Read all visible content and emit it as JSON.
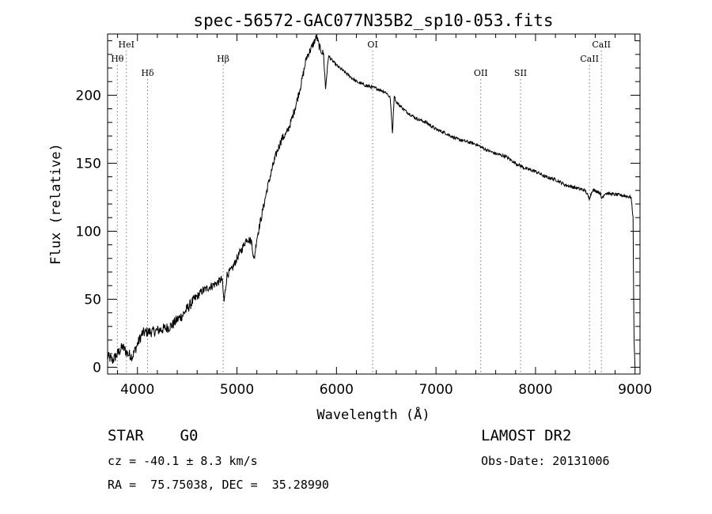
{
  "chart_data": {
    "type": "line",
    "title": "spec-56572-GAC077N35B2_sp10-053.fits",
    "xlabel": "Wavelength (Å)",
    "ylabel": "Flux (relative)",
    "xlim": [
      3700,
      9050
    ],
    "ylim": [
      -5,
      245
    ],
    "x_ticks": [
      4000,
      5000,
      6000,
      7000,
      8000,
      9000
    ],
    "y_ticks": [
      0,
      50,
      100,
      150,
      200
    ],
    "grid": false,
    "series": [
      {
        "x": [
          3700,
          3750,
          3800,
          3850,
          3900,
          3950,
          4000,
          4050,
          4100,
          4150,
          4200,
          4250,
          4300,
          4350,
          4400,
          4450,
          4500,
          4550,
          4600,
          4650,
          4700,
          4750,
          4800,
          4850,
          4870,
          4900,
          4950,
          5000,
          5050,
          5100,
          5150,
          5170,
          5200,
          5250,
          5300,
          5350,
          5400,
          5450,
          5500,
          5550,
          5600,
          5650,
          5700,
          5750,
          5800,
          5830,
          5870,
          5890,
          5920,
          5950,
          6000,
          6100,
          6200,
          6300,
          6400,
          6500,
          6540,
          6563,
          6580,
          6600,
          6700,
          6800,
          6900,
          7000,
          7100,
          7200,
          7300,
          7400,
          7500,
          7600,
          7700,
          7800,
          7900,
          8000,
          8100,
          8200,
          8300,
          8400,
          8500,
          8540,
          8570,
          8600,
          8650,
          8662,
          8700,
          8800,
          8900,
          8960,
          8980,
          8990,
          9000
        ],
        "y": [
          8,
          5,
          10,
          15,
          10,
          8,
          17,
          25,
          26,
          26,
          27,
          28,
          29,
          31,
          35,
          38,
          43,
          48,
          52,
          56,
          58,
          60,
          62,
          65,
          48,
          68,
          72,
          80,
          87,
          95,
          92,
          78,
          95,
          112,
          130,
          145,
          158,
          168,
          172,
          182,
          195,
          210,
          228,
          235,
          243,
          235,
          230,
          205,
          229,
          226,
          222,
          216,
          210,
          207,
          205,
          202,
          198,
          172,
          200,
          195,
          188,
          183,
          180,
          175,
          172,
          168,
          166,
          164,
          160,
          157,
          155,
          150,
          146,
          144,
          140,
          138,
          134,
          132,
          130,
          124,
          130,
          130,
          128,
          124,
          128,
          127,
          126,
          125,
          110,
          20,
          0
        ]
      }
    ],
    "line_markers": [
      {
        "label": "Hθ",
        "x": 3798,
        "row": 2
      },
      {
        "label": "HeI",
        "x": 3889,
        "row": 1
      },
      {
        "label": "Hδ",
        "x": 4102,
        "row": 3
      },
      {
        "label": "Hβ",
        "x": 4861,
        "row": 2
      },
      {
        "label": "OI",
        "x": 6364,
        "row": 1
      },
      {
        "label": "OII",
        "x": 7450,
        "row": 3
      },
      {
        "label": "SII",
        "x": 7850,
        "row": 3
      },
      {
        "label": "CaII",
        "x": 8542,
        "row": 2
      },
      {
        "label": "CaII",
        "x": 8662,
        "row": 1
      }
    ]
  },
  "info": {
    "class": "STAR    G0",
    "survey": "LAMOST DR2",
    "cz": "cz = -40.1 ± 8.3 km/s",
    "obs_date": "Obs-Date: 20131006",
    "radec": "RA =  75.75038, DEC =  35.28990"
  }
}
